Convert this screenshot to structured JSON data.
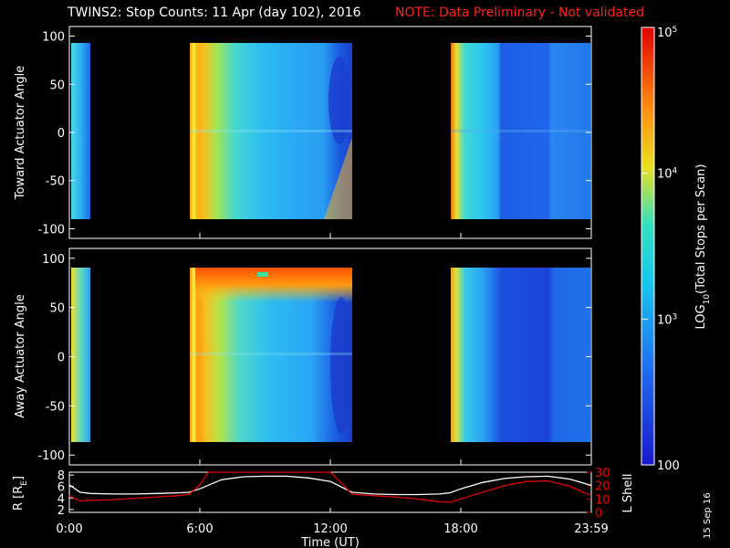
{
  "header": {
    "title": "TWINS2: Stop Counts: 11 Apr (day 102), 2016",
    "note": "NOTE: Data Preliminary - Not validated",
    "title_color": "#ffffff",
    "note_color": "#ff2020"
  },
  "stamp": "15 Sep 16",
  "chart_data": [
    {
      "type": "heatmap",
      "panel": "top",
      "ylabel": "Toward Actuator Angle",
      "ylim": [
        -110,
        110
      ],
      "y_ticks": [
        "100",
        "50",
        "0",
        "-50",
        "-100"
      ],
      "x_range_hours": [
        0,
        24
      ],
      "data_segments_hours": [
        [
          0,
          0.33
        ],
        [
          5.5,
          13.0
        ],
        [
          17.5,
          24.0
        ]
      ],
      "notable_features": "intense band at segment start near 5.6 UT; deep blue cavity near 12 UT; low counts after 19.5 UT"
    },
    {
      "type": "heatmap",
      "panel": "middle",
      "ylabel": "Away Actuator Angle",
      "ylim": [
        -110,
        110
      ],
      "y_ticks": [
        "100",
        "50",
        "0",
        "-50",
        "-100"
      ],
      "x_range_hours": [
        0,
        24
      ],
      "data_segments_hours": [
        [
          0,
          0.33
        ],
        [
          5.5,
          13.0
        ],
        [
          17.5,
          24.0
        ]
      ],
      "notable_features": "red/orange band at 80-90 deg from 6 to 13 UT; deep blue cavity near 12 UT; low counts after 19.5 UT"
    },
    {
      "type": "line",
      "panel": "bottom",
      "ylabel_left": "R [RE]",
      "ylabel_right": "L Shell",
      "y_left_ticks": [
        "8",
        "6",
        "4",
        "2"
      ],
      "y_left_lim": [
        1.5,
        8.5
      ],
      "y_right_ticks": [
        "30",
        "20",
        "10",
        "0"
      ],
      "y_right_lim": [
        0,
        30
      ],
      "x_tick_labels": [
        "0:00",
        "6:00",
        "12:00",
        "18:00",
        "23:59"
      ],
      "x_tick_hours": [
        0,
        6,
        12,
        18,
        24
      ],
      "xlabel": "Time (UT)",
      "series": [
        {
          "name": "R",
          "color": "#ffffff",
          "x": [
            0,
            0.5,
            1,
            2,
            3,
            4,
            5,
            5.5,
            6,
            7,
            8,
            9,
            10,
            11,
            12,
            13,
            14,
            15,
            16,
            17,
            17.5,
            18,
            19,
            20,
            21,
            22,
            23,
            24
          ],
          "y": [
            6.3,
            5.0,
            4.8,
            4.7,
            4.7,
            4.8,
            4.9,
            5.0,
            5.6,
            7.2,
            7.7,
            7.8,
            7.8,
            7.5,
            6.9,
            5.0,
            4.7,
            4.6,
            4.6,
            4.7,
            4.9,
            5.6,
            6.7,
            7.4,
            7.7,
            7.8,
            7.3,
            6.2
          ]
        },
        {
          "name": "L Shell",
          "color": "#e00000",
          "x": [
            0,
            0.5,
            1,
            2,
            3,
            4,
            5,
            5.5,
            6,
            6.4,
            12.0,
            12.5,
            13,
            14,
            15,
            16,
            17,
            17.5,
            18,
            19,
            20,
            21,
            22,
            23,
            24
          ],
          "y": [
            12.5,
            8.5,
            9.0,
            9.5,
            10.5,
            11.5,
            12.5,
            13.5,
            20.5,
            30.0,
            30.0,
            22.0,
            13.5,
            12.5,
            11.5,
            10.0,
            8.0,
            7.5,
            10.0,
            15.0,
            20.0,
            23.0,
            23.5,
            19.5,
            12.5
          ]
        }
      ]
    },
    {
      "type": "heatmap",
      "panel": "colorbar",
      "label": "LOG10(Total Stops per Scan)",
      "label_parts": {
        "pre": "LOG",
        "sub": "10",
        "post": "(Total Stops per Scan)"
      },
      "ticks": [
        {
          "base": "10",
          "exp": "5"
        },
        {
          "base": "10",
          "exp": "4"
        },
        {
          "base": "10",
          "exp": "3"
        },
        {
          "base": "100",
          "exp": ""
        }
      ],
      "range": [
        100,
        100000
      ],
      "scale": "log"
    }
  ]
}
